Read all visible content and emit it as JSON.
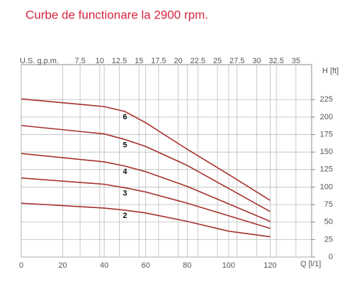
{
  "chart_data": {
    "type": "line",
    "title": "Curbe de functionare la 2900 rpm.",
    "x_label": "Q [l/1]",
    "y_label": "H [ft]",
    "x2_label": "U.S. g.p.m.",
    "x": [
      0,
      40,
      50,
      60,
      80,
      100,
      120
    ],
    "series": [
      {
        "name": "6",
        "color": "#a5302c",
        "values": [
          226,
          215,
          208,
          192,
          154,
          118,
          81
        ]
      },
      {
        "name": "5",
        "color": "#a5302c",
        "values": [
          188,
          176,
          168,
          158,
          131,
          98,
          65
        ]
      },
      {
        "name": "4",
        "color": "#a5302c",
        "values": [
          148,
          136,
          130,
          122,
          101,
          76,
          51
        ]
      },
      {
        "name": "3",
        "color": "#a5302c",
        "values": [
          113,
          104,
          99,
          93,
          77,
          59,
          41
        ]
      },
      {
        "name": "2",
        "color": "#a5302c",
        "values": [
          77,
          70,
          67,
          63,
          51,
          37,
          29
        ]
      }
    ],
    "xlim": [
      0,
      140
    ],
    "xticks": [
      0,
      20,
      40,
      60,
      80,
      100,
      120
    ],
    "ylim": [
      0,
      275
    ],
    "yticks": [
      0,
      25,
      50,
      75,
      100,
      125,
      150,
      175,
      200,
      225
    ],
    "x2lim": [
      0,
      37
    ],
    "x2ticks": [
      7.5,
      10,
      12.5,
      15,
      17.5,
      20,
      22.5,
      25,
      27.5,
      30,
      32.5,
      35
    ],
    "grid": true
  }
}
